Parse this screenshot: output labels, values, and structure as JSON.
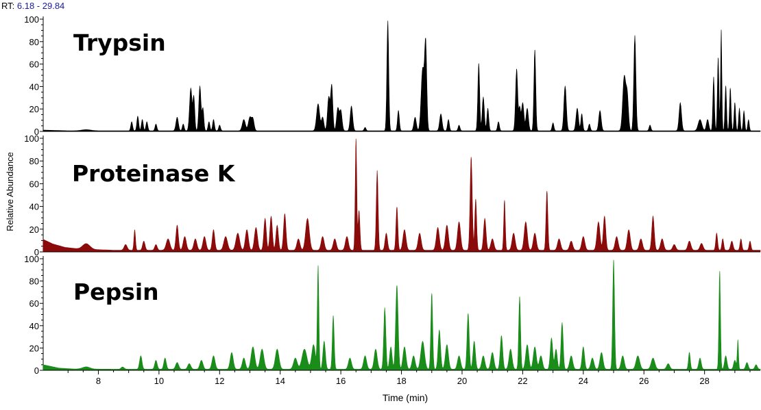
{
  "header": {
    "rt_prefix": "RT:",
    "rt_range": "6.18 - 29.84"
  },
  "chart_data": {
    "type": "area",
    "xlabel": "Time (min)",
    "ylabel": "Relative Abundance",
    "xlim": [
      6.18,
      29.84
    ],
    "ylim": [
      0,
      100
    ],
    "x_ticks": [
      8,
      10,
      12,
      14,
      16,
      18,
      20,
      22,
      24,
      26,
      28
    ],
    "y_ticks": [
      0,
      20,
      40,
      60,
      80,
      100
    ],
    "grid": false,
    "panels": [
      {
        "title": "Trypsin",
        "color": "#000000",
        "peaks": [
          [
            7.6,
            1,
            0.15
          ],
          [
            9.1,
            8,
            0.03
          ],
          [
            9.3,
            13,
            0.03
          ],
          [
            9.45,
            10,
            0.03
          ],
          [
            9.6,
            8,
            0.03
          ],
          [
            9.9,
            6,
            0.03
          ],
          [
            10.6,
            12,
            0.04
          ],
          [
            10.8,
            6,
            0.03
          ],
          [
            11.05,
            38,
            0.04
          ],
          [
            11.15,
            30,
            0.03
          ],
          [
            11.35,
            40,
            0.035
          ],
          [
            11.45,
            20,
            0.03
          ],
          [
            11.65,
            8,
            0.03
          ],
          [
            11.8,
            10,
            0.03
          ],
          [
            12.0,
            5,
            0.03
          ],
          [
            12.8,
            10,
            0.05
          ],
          [
            13.0,
            12,
            0.05
          ],
          [
            13.1,
            10,
            0.04
          ],
          [
            15.25,
            24,
            0.05
          ],
          [
            15.4,
            12,
            0.04
          ],
          [
            15.6,
            30,
            0.04
          ],
          [
            15.7,
            40,
            0.035
          ],
          [
            15.9,
            20,
            0.04
          ],
          [
            16.0,
            18,
            0.04
          ],
          [
            16.35,
            22,
            0.04
          ],
          [
            16.8,
            3,
            0.03
          ],
          [
            17.55,
            98,
            0.03
          ],
          [
            17.9,
            18,
            0.03
          ],
          [
            18.45,
            12,
            0.04
          ],
          [
            18.7,
            55,
            0.05
          ],
          [
            18.8,
            75,
            0.035
          ],
          [
            19.3,
            15,
            0.04
          ],
          [
            19.55,
            10,
            0.03
          ],
          [
            19.9,
            5,
            0.03
          ],
          [
            20.55,
            60,
            0.03
          ],
          [
            20.7,
            30,
            0.035
          ],
          [
            20.85,
            20,
            0.03
          ],
          [
            21.2,
            8,
            0.03
          ],
          [
            21.8,
            55,
            0.035
          ],
          [
            21.9,
            20,
            0.03
          ],
          [
            22.0,
            25,
            0.04
          ],
          [
            22.15,
            20,
            0.04
          ],
          [
            22.4,
            72,
            0.03
          ],
          [
            23.0,
            7,
            0.03
          ],
          [
            23.4,
            40,
            0.04
          ],
          [
            23.8,
            20,
            0.04
          ],
          [
            23.95,
            15,
            0.03
          ],
          [
            24.2,
            6,
            0.03
          ],
          [
            24.55,
            18,
            0.04
          ],
          [
            25.35,
            48,
            0.05
          ],
          [
            25.45,
            30,
            0.04
          ],
          [
            25.7,
            85,
            0.035
          ],
          [
            26.2,
            5,
            0.03
          ],
          [
            27.2,
            25,
            0.04
          ],
          [
            27.85,
            10,
            0.06
          ],
          [
            28.1,
            10,
            0.04
          ],
          [
            28.3,
            48,
            0.025
          ],
          [
            28.45,
            65,
            0.025
          ],
          [
            28.55,
            90,
            0.02
          ],
          [
            28.7,
            40,
            0.025
          ],
          [
            28.85,
            38,
            0.025
          ],
          [
            29.0,
            25,
            0.025
          ],
          [
            29.15,
            20,
            0.025
          ],
          [
            29.3,
            18,
            0.025
          ],
          [
            29.45,
            10,
            0.025
          ]
        ],
        "baseline": [
          [
            6.18,
            1.2
          ],
          [
            7.0,
            0.6
          ],
          [
            29.84,
            0.6
          ]
        ]
      },
      {
        "title": "Proteinase K",
        "color": "#8b0b0b",
        "peaks": [
          [
            7.6,
            5,
            0.12
          ],
          [
            8.9,
            5,
            0.05
          ],
          [
            9.2,
            18,
            0.025
          ],
          [
            9.5,
            8,
            0.04
          ],
          [
            9.9,
            5,
            0.04
          ],
          [
            10.3,
            10,
            0.06
          ],
          [
            10.6,
            22,
            0.04
          ],
          [
            10.85,
            12,
            0.05
          ],
          [
            11.2,
            10,
            0.05
          ],
          [
            11.5,
            12,
            0.05
          ],
          [
            11.8,
            18,
            0.04
          ],
          [
            12.2,
            12,
            0.06
          ],
          [
            12.6,
            15,
            0.06
          ],
          [
            12.9,
            18,
            0.05
          ],
          [
            13.2,
            20,
            0.05
          ],
          [
            13.5,
            28,
            0.04
          ],
          [
            13.7,
            30,
            0.04
          ],
          [
            13.9,
            22,
            0.04
          ],
          [
            14.15,
            32,
            0.04
          ],
          [
            14.6,
            10,
            0.05
          ],
          [
            14.9,
            28,
            0.06
          ],
          [
            15.4,
            12,
            0.05
          ],
          [
            15.8,
            10,
            0.05
          ],
          [
            16.2,
            12,
            0.05
          ],
          [
            16.5,
            98,
            0.025
          ],
          [
            16.6,
            35,
            0.03
          ],
          [
            17.2,
            70,
            0.03
          ],
          [
            17.5,
            15,
            0.04
          ],
          [
            17.85,
            38,
            0.03
          ],
          [
            18.1,
            18,
            0.05
          ],
          [
            18.6,
            15,
            0.05
          ],
          [
            19.2,
            20,
            0.05
          ],
          [
            19.5,
            22,
            0.05
          ],
          [
            19.9,
            25,
            0.05
          ],
          [
            20.3,
            82,
            0.035
          ],
          [
            20.45,
            45,
            0.03
          ],
          [
            20.75,
            28,
            0.04
          ],
          [
            21.0,
            10,
            0.05
          ],
          [
            21.4,
            44,
            0.025
          ],
          [
            21.7,
            15,
            0.05
          ],
          [
            22.1,
            25,
            0.05
          ],
          [
            22.4,
            15,
            0.05
          ],
          [
            22.8,
            52,
            0.03
          ],
          [
            23.2,
            10,
            0.05
          ],
          [
            23.6,
            8,
            0.05
          ],
          [
            24.0,
            12,
            0.05
          ],
          [
            24.5,
            25,
            0.05
          ],
          [
            24.7,
            30,
            0.04
          ],
          [
            25.1,
            12,
            0.05
          ],
          [
            25.5,
            18,
            0.05
          ],
          [
            25.9,
            10,
            0.05
          ],
          [
            26.3,
            30,
            0.04
          ],
          [
            26.6,
            10,
            0.05
          ],
          [
            27.0,
            5,
            0.05
          ],
          [
            27.5,
            8,
            0.05
          ],
          [
            27.9,
            6,
            0.05
          ],
          [
            28.4,
            15,
            0.03
          ],
          [
            28.6,
            10,
            0.03
          ],
          [
            28.9,
            8,
            0.04
          ],
          [
            29.2,
            10,
            0.03
          ],
          [
            29.5,
            8,
            0.03
          ]
        ],
        "baseline": [
          [
            6.18,
            11
          ],
          [
            6.5,
            7
          ],
          [
            6.9,
            4
          ],
          [
            7.4,
            2.5
          ],
          [
            8.5,
            1.5
          ],
          [
            29.84,
            1.5
          ]
        ]
      },
      {
        "title": "Pepsin",
        "color": "#1a8c1a",
        "peaks": [
          [
            7.6,
            2,
            0.12
          ],
          [
            8.8,
            2,
            0.05
          ],
          [
            9.4,
            12,
            0.04
          ],
          [
            9.9,
            8,
            0.04
          ],
          [
            10.2,
            10,
            0.04
          ],
          [
            10.6,
            6,
            0.05
          ],
          [
            11.0,
            5,
            0.05
          ],
          [
            11.4,
            8,
            0.05
          ],
          [
            11.8,
            12,
            0.05
          ],
          [
            12.4,
            15,
            0.05
          ],
          [
            12.8,
            10,
            0.05
          ],
          [
            13.1,
            20,
            0.06
          ],
          [
            13.4,
            18,
            0.06
          ],
          [
            13.9,
            18,
            0.06
          ],
          [
            14.5,
            10,
            0.06
          ],
          [
            14.8,
            18,
            0.08
          ],
          [
            15.1,
            22,
            0.06
          ],
          [
            15.25,
            92,
            0.025
          ],
          [
            15.45,
            25,
            0.04
          ],
          [
            15.75,
            48,
            0.03
          ],
          [
            16.3,
            10,
            0.05
          ],
          [
            16.8,
            12,
            0.05
          ],
          [
            17.15,
            18,
            0.05
          ],
          [
            17.45,
            55,
            0.035
          ],
          [
            17.65,
            20,
            0.04
          ],
          [
            17.85,
            75,
            0.04
          ],
          [
            18.1,
            20,
            0.05
          ],
          [
            18.4,
            12,
            0.05
          ],
          [
            18.7,
            25,
            0.06
          ],
          [
            19.0,
            68,
            0.03
          ],
          [
            19.25,
            35,
            0.04
          ],
          [
            19.5,
            22,
            0.05
          ],
          [
            19.9,
            12,
            0.05
          ],
          [
            20.2,
            50,
            0.035
          ],
          [
            20.4,
            25,
            0.04
          ],
          [
            20.7,
            12,
            0.05
          ],
          [
            21.0,
            15,
            0.05
          ],
          [
            21.3,
            30,
            0.04
          ],
          [
            21.6,
            18,
            0.05
          ],
          [
            21.9,
            65,
            0.03
          ],
          [
            22.15,
            22,
            0.05
          ],
          [
            22.4,
            20,
            0.05
          ],
          [
            22.6,
            12,
            0.05
          ],
          [
            22.95,
            28,
            0.04
          ],
          [
            23.1,
            18,
            0.04
          ],
          [
            23.3,
            42,
            0.035
          ],
          [
            23.6,
            12,
            0.05
          ],
          [
            24.0,
            20,
            0.04
          ],
          [
            24.3,
            10,
            0.05
          ],
          [
            24.6,
            15,
            0.05
          ],
          [
            25.0,
            98,
            0.03
          ],
          [
            25.3,
            12,
            0.05
          ],
          [
            25.8,
            12,
            0.06
          ],
          [
            26.3,
            10,
            0.06
          ],
          [
            26.8,
            5,
            0.05
          ],
          [
            27.5,
            15,
            0.03
          ],
          [
            27.85,
            10,
            0.04
          ],
          [
            28.5,
            88,
            0.025
          ],
          [
            28.7,
            12,
            0.04
          ],
          [
            29.0,
            8,
            0.04
          ],
          [
            29.1,
            26,
            0.02
          ],
          [
            29.4,
            6,
            0.04
          ],
          [
            29.7,
            4,
            0.04
          ]
        ],
        "baseline": [
          [
            6.18,
            5
          ],
          [
            6.7,
            2
          ],
          [
            7.2,
            1.2
          ],
          [
            8.5,
            1
          ],
          [
            29.84,
            1
          ]
        ]
      }
    ]
  }
}
